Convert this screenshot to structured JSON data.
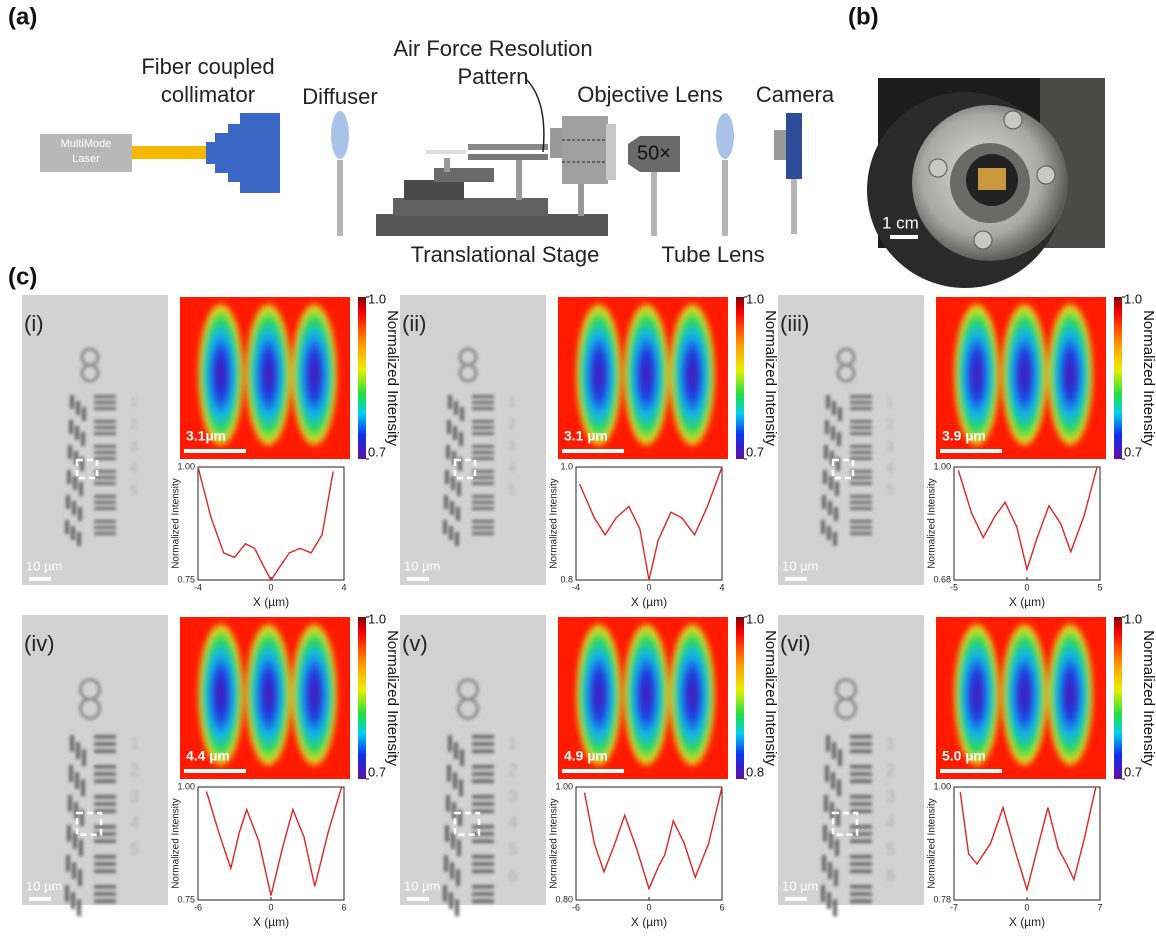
{
  "panel_labels": {
    "a": "(a)",
    "b": "(b)",
    "c": "(c)"
  },
  "setup": {
    "laser": [
      "MultiMode",
      "Laser"
    ],
    "collimator": [
      "Fiber coupled",
      "collimator"
    ],
    "diffuser": "Diffuser",
    "pattern": [
      "Air Force Resolution",
      "Pattern"
    ],
    "objective": "Objective Lens",
    "magnification": "50×",
    "camera": "Camera",
    "stage": "Translational Stage",
    "tube_lens": "Tube Lens"
  },
  "photo": {
    "scale_bar": "1 cm"
  },
  "panels": [
    {
      "label": "(i)",
      "digits": [
        "1",
        "2",
        "3",
        "4",
        "5"
      ],
      "image_scale_bar": "10 µm",
      "heatmap": {
        "scale_bar": "3.1µm",
        "clim": [
          0.7,
          1.0
        ],
        "cticks": [
          {
            "value": 1.0,
            "label": "1.0"
          },
          0.7
        ],
        "colorbar_label": "Normalized Intensity"
      },
      "profile": {
        "type": "line",
        "color": "#e02424",
        "xlabel": "X (µm)",
        "ylabel": "Normalized Intensity",
        "x": [
          -4,
          -3.3,
          -2.6,
          -2,
          -1.4,
          -0.9,
          -0.4,
          0,
          0.5,
          1,
          1.6,
          2.2,
          2.8,
          3.4
        ],
        "values": [
          1.0,
          0.89,
          0.81,
          0.8,
          0.83,
          0.82,
          0.78,
          0.75,
          0.78,
          0.81,
          0.82,
          0.81,
          0.85,
          0.99
        ],
        "xlim": [
          -4,
          4
        ],
        "ylim": [
          0.75,
          1.0
        ],
        "xticks": [
          -4,
          0,
          4
        ],
        "yticks": [
          {
            "value": 1.0,
            "label": "1.00"
          },
          0.75
        ]
      }
    },
    {
      "label": "(ii)",
      "digits": [
        "1",
        "2",
        "3",
        "4",
        "5"
      ],
      "image_scale_bar": "10 µm",
      "heatmap": {
        "scale_bar": "3.1 µm",
        "clim": [
          0.7,
          1.0
        ],
        "cticks": [
          {
            "value": 1.0,
            "label": "1.0"
          },
          0.7
        ],
        "colorbar_label": "Normalized Intensity"
      },
      "profile": {
        "type": "line",
        "color": "#e02424",
        "xlabel": "X (µm)",
        "ylabel": "Normalized Intensity",
        "x": [
          -3.8,
          -3,
          -2.4,
          -1.8,
          -1.1,
          -0.5,
          0,
          0.5,
          1.2,
          1.8,
          2.5,
          3.2,
          4
        ],
        "values": [
          0.97,
          0.91,
          0.88,
          0.91,
          0.93,
          0.89,
          0.8,
          0.87,
          0.92,
          0.91,
          0.88,
          0.93,
          1.0
        ],
        "xlim": [
          -4,
          4
        ],
        "ylim": [
          0.8,
          1.0
        ],
        "xticks": [
          -4,
          0,
          4
        ],
        "yticks": [
          {
            "value": 1.0,
            "label": "1.0"
          },
          0.8
        ]
      }
    },
    {
      "label": "(iii)",
      "digits": [
        "1",
        "2",
        "3",
        "4",
        "5"
      ],
      "image_scale_bar": "10 µm",
      "heatmap": {
        "scale_bar": "3.9 µm",
        "clim": [
          0.7,
          1.0
        ],
        "cticks": [
          {
            "value": 1.0,
            "label": "1.0"
          },
          0.7
        ],
        "colorbar_label": "Normalized Intensity"
      },
      "profile": {
        "type": "line",
        "color": "#e02424",
        "xlabel": "X (µm)",
        "ylabel": "Normalized Intensity",
        "x": [
          -4.7,
          -3.8,
          -3,
          -2.2,
          -1.5,
          -0.7,
          0,
          0.7,
          1.5,
          2.3,
          3,
          3.9,
          4.8
        ],
        "values": [
          0.99,
          0.87,
          0.8,
          0.86,
          0.9,
          0.83,
          0.71,
          0.8,
          0.89,
          0.84,
          0.76,
          0.86,
          1.0
        ],
        "xlim": [
          -5,
          5
        ],
        "ylim": [
          0.68,
          1.0
        ],
        "xticks": [
          -5,
          0,
          5
        ],
        "yticks": [
          {
            "value": 1.0,
            "label": "1.00"
          },
          0.68
        ]
      }
    },
    {
      "label": "(iv)",
      "digits": [
        "1",
        "2",
        "3",
        "4",
        "5"
      ],
      "image_scale_bar": "10 µm",
      "heatmap": {
        "scale_bar": "4.4 µm",
        "clim": [
          0.7,
          1.0
        ],
        "cticks": [
          {
            "value": 1.0,
            "label": "1.0"
          },
          0.7
        ],
        "colorbar_label": "Normalized Intensity"
      },
      "profile": {
        "type": "line",
        "color": "#e02424",
        "xlabel": "X (µm)",
        "ylabel": "Normalized Intensity",
        "x": [
          -5.3,
          -4.3,
          -3.3,
          -2.6,
          -2,
          -1,
          0,
          0.9,
          1.8,
          2.7,
          3.6,
          4.7,
          5.8
        ],
        "values": [
          0.99,
          0.9,
          0.82,
          0.9,
          0.95,
          0.88,
          0.76,
          0.86,
          0.95,
          0.89,
          0.78,
          0.9,
          1.0
        ],
        "xlim": [
          -6,
          6
        ],
        "ylim": [
          0.75,
          1.0
        ],
        "xticks": [
          -6,
          0,
          6
        ],
        "yticks": [
          {
            "value": 1.0,
            "label": "1.00"
          },
          0.75
        ]
      }
    },
    {
      "label": "(v)",
      "digits": [
        "1",
        "2",
        "3",
        "4",
        "5",
        "6"
      ],
      "image_scale_bar": "10 µm",
      "heatmap": {
        "scale_bar": "4.9 µm",
        "clim": [
          0.8,
          1.0
        ],
        "cticks": [
          {
            "value": 1.0,
            "label": "1.0"
          },
          0.8
        ],
        "colorbar_label": "Normalized Intensity"
      },
      "profile": {
        "type": "line",
        "color": "#e02424",
        "xlabel": "X (µm)",
        "ylabel": "Normalized Intensity",
        "x": [
          -5.3,
          -4.5,
          -3.7,
          -2.8,
          -2,
          -1,
          0,
          0.8,
          1.3,
          2,
          2.9,
          3.8,
          4.9,
          6
        ],
        "values": [
          0.99,
          0.9,
          0.85,
          0.9,
          0.95,
          0.89,
          0.82,
          0.86,
          0.88,
          0.94,
          0.9,
          0.84,
          0.9,
          1.0
        ],
        "xlim": [
          -6,
          6
        ],
        "ylim": [
          0.8,
          1.0
        ],
        "xticks": [
          -6,
          0,
          6
        ],
        "yticks": [
          {
            "value": 1.0,
            "label": "1.00"
          },
          {
            "value": 0.8,
            "label": "0.80"
          }
        ]
      }
    },
    {
      "label": "(vi)",
      "digits": [
        "1",
        "2",
        "3",
        "4",
        "5",
        "6"
      ],
      "image_scale_bar": "10 µm",
      "heatmap": {
        "scale_bar": "5.0 µm",
        "clim": [
          0.7,
          1.0
        ],
        "cticks": [
          {
            "value": 1.0,
            "label": "1.0"
          },
          0.7
        ],
        "colorbar_label": "Normalized Intensity"
      },
      "profile": {
        "type": "line",
        "color": "#e02424",
        "xlabel": "X (µm)",
        "ylabel": "Normalized Intensity",
        "x": [
          -6.4,
          -5.6,
          -4.8,
          -3.5,
          -2.3,
          -1.2,
          0,
          1,
          2,
          3,
          3.8,
          4.5,
          5.5,
          6.6
        ],
        "values": [
          0.99,
          0.87,
          0.85,
          0.89,
          0.96,
          0.88,
          0.8,
          0.88,
          0.96,
          0.88,
          0.85,
          0.82,
          0.9,
          1.0
        ],
        "xlim": [
          -7,
          7
        ],
        "ylim": [
          0.78,
          1.0
        ],
        "xticks": [
          -7,
          0,
          7
        ],
        "yticks": [
          {
            "value": 1.0,
            "label": "1.00"
          },
          0.78
        ]
      }
    }
  ]
}
